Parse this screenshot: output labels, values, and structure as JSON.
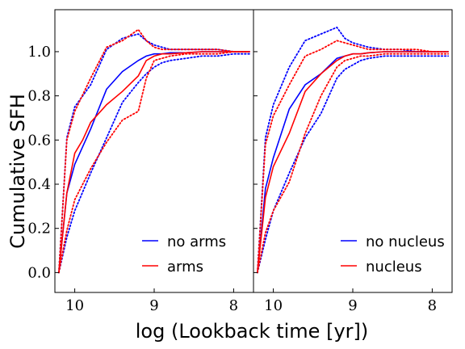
{
  "chart_data": [
    {
      "type": "line",
      "panel": "left",
      "ylabel": "Cumulative SFH",
      "xlabel": "log (Lookback time [yr])",
      "xlim": [
        10.25,
        7.75
      ],
      "ylim": [
        -0.09,
        1.19
      ],
      "xticks": [
        "10",
        "9",
        "8"
      ],
      "yticks": [
        "0.0",
        "0.2",
        "0.4",
        "0.6",
        "0.8",
        "1.0"
      ],
      "legend_placement": "lower-right",
      "series": [
        {
          "name": "no arms",
          "color": "#0000ff",
          "style": "solid",
          "x": [
            10.2,
            10.1,
            10.0,
            9.8,
            9.6,
            9.4,
            9.2,
            9.1,
            9.0,
            8.9,
            8.8,
            8.6,
            8.4,
            8.2,
            8.0,
            7.8
          ],
          "y": [
            0.0,
            0.36,
            0.49,
            0.65,
            0.83,
            0.91,
            0.96,
            0.98,
            0.99,
            0.99,
            0.995,
            0.995,
            1.0,
            1.0,
            1.0,
            1.0
          ]
        },
        {
          "name": "",
          "color": "#0000ff",
          "style": "dotted",
          "x": [
            10.2,
            10.1,
            10.0,
            9.8,
            9.6,
            9.4,
            9.2,
            9.1,
            9.0,
            8.9,
            8.8,
            8.6,
            8.4,
            8.2,
            8.0,
            7.8
          ],
          "y": [
            0.0,
            0.16,
            0.28,
            0.45,
            0.61,
            0.77,
            0.86,
            0.9,
            0.93,
            0.95,
            0.96,
            0.97,
            0.98,
            0.98,
            0.99,
            0.99
          ]
        },
        {
          "name": "",
          "color": "#0000ff",
          "style": "dotted",
          "x": [
            10.2,
            10.1,
            10.0,
            9.8,
            9.6,
            9.4,
            9.2,
            9.1,
            9.0,
            8.9,
            8.8,
            8.6,
            8.4,
            8.2,
            8.0,
            7.8
          ],
          "y": [
            0.0,
            0.61,
            0.75,
            0.85,
            1.01,
            1.06,
            1.08,
            1.05,
            1.03,
            1.02,
            1.01,
            1.01,
            1.01,
            1.01,
            1.0,
            1.0
          ]
        },
        {
          "name": "arms",
          "color": "#ff0000",
          "style": "solid",
          "x": [
            10.2,
            10.1,
            10.0,
            9.9,
            9.8,
            9.6,
            9.4,
            9.2,
            9.1,
            9.0,
            8.9,
            8.8,
            8.6,
            8.4,
            8.2,
            8.0,
            7.8
          ],
          "y": [
            0.0,
            0.36,
            0.54,
            0.6,
            0.68,
            0.76,
            0.82,
            0.89,
            0.96,
            0.98,
            0.99,
            0.99,
            0.995,
            1.0,
            1.0,
            1.0,
            1.0
          ]
        },
        {
          "name": "",
          "color": "#ff0000",
          "style": "dotted",
          "x": [
            10.2,
            10.1,
            10.0,
            9.8,
            9.6,
            9.4,
            9.2,
            9.1,
            9.0,
            8.9,
            8.8,
            8.6,
            8.4,
            8.2,
            8.0,
            7.8
          ],
          "y": [
            0.0,
            0.19,
            0.33,
            0.47,
            0.59,
            0.69,
            0.73,
            0.88,
            0.96,
            0.97,
            0.98,
            0.99,
            0.99,
            0.99,
            1.0,
            1.0
          ]
        },
        {
          "name": "",
          "color": "#ff0000",
          "style": "dotted",
          "x": [
            10.2,
            10.1,
            10.0,
            9.8,
            9.6,
            9.4,
            9.2,
            9.1,
            9.0,
            8.9,
            8.8,
            8.6,
            8.4,
            8.2,
            8.0,
            7.8
          ],
          "y": [
            0.0,
            0.6,
            0.73,
            0.88,
            1.02,
            1.05,
            1.1,
            1.05,
            1.02,
            1.01,
            1.01,
            1.01,
            1.01,
            1.01,
            1.0,
            1.0
          ]
        }
      ]
    },
    {
      "type": "line",
      "panel": "right",
      "xlim": [
        10.25,
        7.75
      ],
      "ylim": [
        -0.09,
        1.19
      ],
      "xticks": [
        "10",
        "9",
        "8"
      ],
      "legend_placement": "lower-right",
      "series": [
        {
          "name": "no nucleus",
          "color": "#0000ff",
          "style": "solid",
          "x": [
            10.2,
            10.1,
            10.0,
            9.8,
            9.6,
            9.4,
            9.2,
            9.1,
            9.0,
            8.9,
            8.8,
            8.6,
            8.4,
            8.2,
            8.0,
            7.8
          ],
          "y": [
            0.0,
            0.38,
            0.52,
            0.74,
            0.85,
            0.9,
            0.97,
            0.98,
            0.99,
            0.99,
            0.995,
            1.0,
            1.0,
            1.0,
            1.0,
            1.0
          ]
        },
        {
          "name": "",
          "color": "#0000ff",
          "style": "dotted",
          "x": [
            10.2,
            10.1,
            10.0,
            9.8,
            9.6,
            9.4,
            9.2,
            9.1,
            9.0,
            8.9,
            8.8,
            8.6,
            8.4,
            8.2,
            8.0,
            7.8
          ],
          "y": [
            0.0,
            0.15,
            0.28,
            0.45,
            0.61,
            0.72,
            0.88,
            0.92,
            0.94,
            0.96,
            0.97,
            0.98,
            0.98,
            0.98,
            0.98,
            0.98
          ]
        },
        {
          "name": "",
          "color": "#0000ff",
          "style": "dotted",
          "x": [
            10.2,
            10.1,
            10.0,
            9.8,
            9.6,
            9.4,
            9.2,
            9.1,
            9.0,
            8.9,
            8.8,
            8.6,
            8.4,
            8.2,
            8.0,
            7.8
          ],
          "y": [
            0.0,
            0.61,
            0.76,
            0.93,
            1.05,
            1.08,
            1.11,
            1.06,
            1.04,
            1.03,
            1.02,
            1.01,
            1.01,
            1.0,
            1.0,
            1.0
          ]
        },
        {
          "name": "nucleus",
          "color": "#ff0000",
          "style": "solid",
          "x": [
            10.2,
            10.1,
            10.0,
            9.8,
            9.6,
            9.4,
            9.2,
            9.1,
            9.0,
            8.9,
            8.8,
            8.6,
            8.4,
            8.2,
            8.0,
            7.8
          ],
          "y": [
            0.0,
            0.34,
            0.48,
            0.63,
            0.82,
            0.9,
            0.96,
            0.98,
            0.99,
            0.99,
            0.995,
            1.0,
            1.0,
            1.0,
            1.0,
            1.0
          ]
        },
        {
          "name": "",
          "color": "#ff0000",
          "style": "dotted",
          "x": [
            10.2,
            10.1,
            10.0,
            9.8,
            9.6,
            9.4,
            9.2,
            9.1,
            9.0,
            8.9,
            8.8,
            8.6,
            8.4,
            8.2,
            8.0,
            7.8
          ],
          "y": [
            0.0,
            0.18,
            0.28,
            0.41,
            0.63,
            0.8,
            0.93,
            0.96,
            0.97,
            0.98,
            0.98,
            0.99,
            0.99,
            0.99,
            0.99,
            0.99
          ]
        },
        {
          "name": "",
          "color": "#ff0000",
          "style": "dotted",
          "x": [
            10.2,
            10.1,
            10.0,
            9.8,
            9.6,
            9.4,
            9.2,
            9.1,
            9.0,
            8.9,
            8.8,
            8.6,
            8.4,
            8.2,
            8.0,
            7.8
          ],
          "y": [
            0.0,
            0.58,
            0.71,
            0.85,
            0.98,
            1.01,
            1.05,
            1.04,
            1.03,
            1.02,
            1.01,
            1.01,
            1.01,
            1.01,
            1.0,
            1.0
          ]
        }
      ]
    }
  ]
}
